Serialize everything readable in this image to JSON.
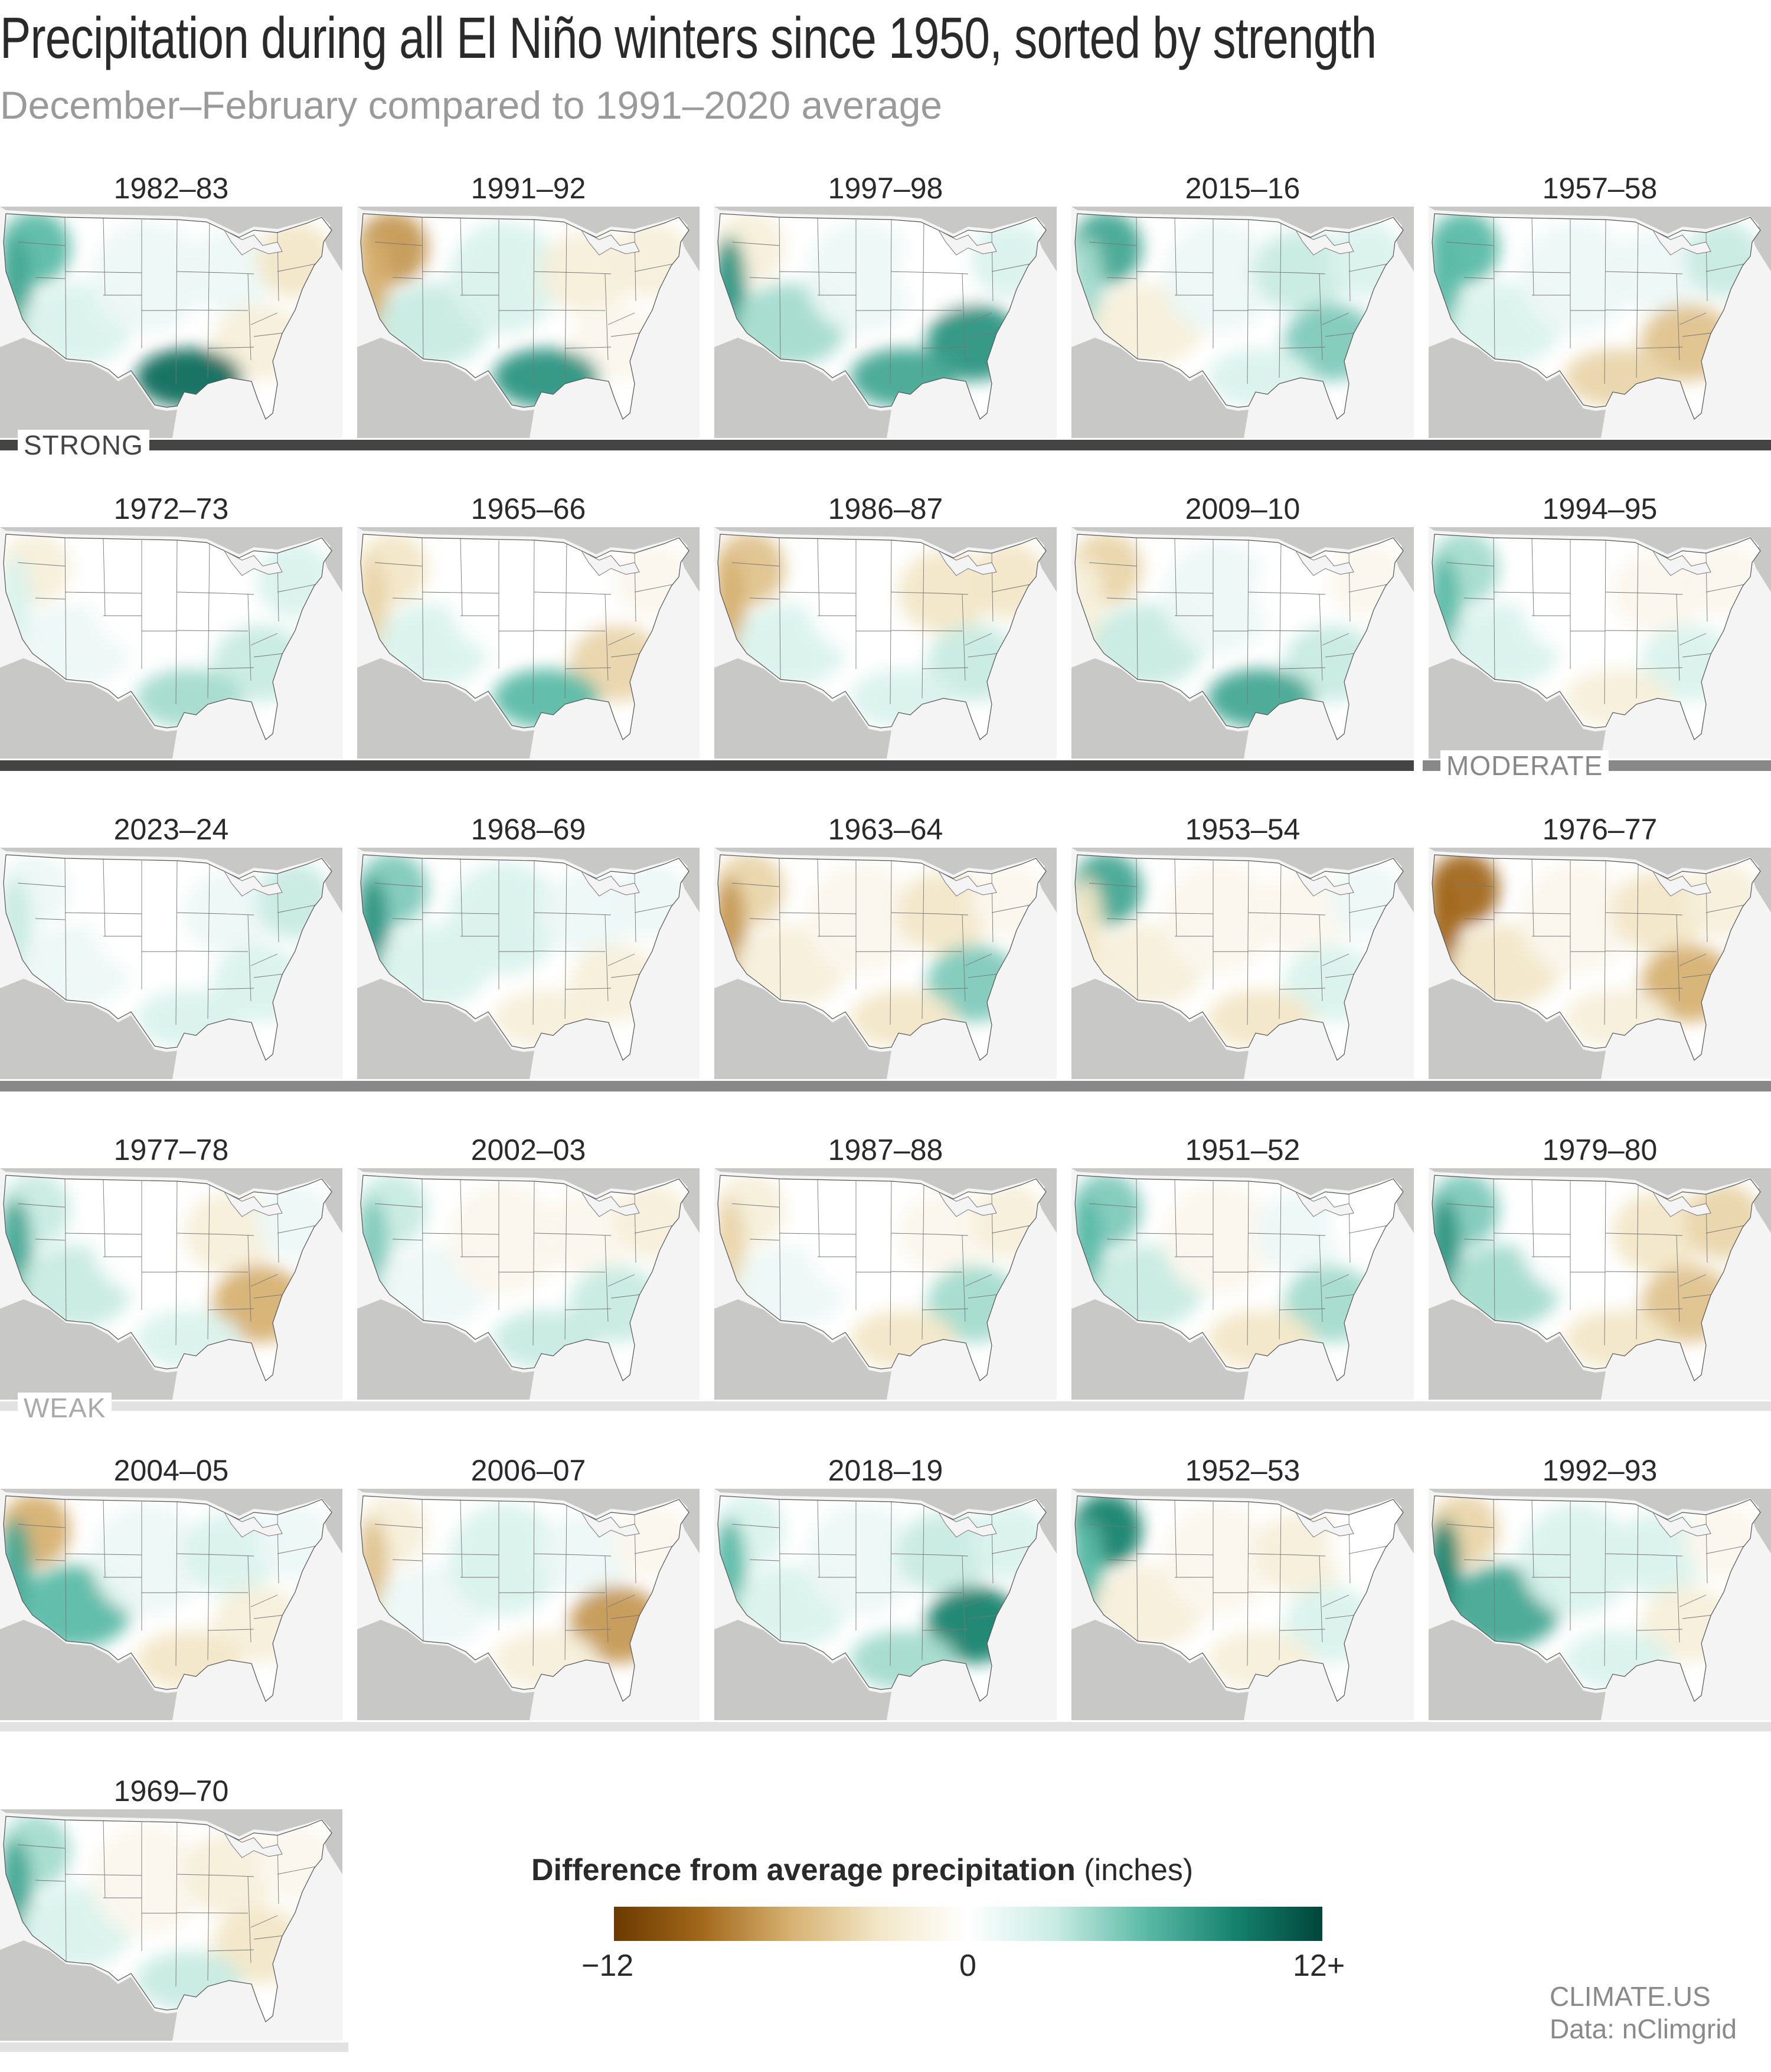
{
  "title": "Precipitation during all El Niño winters since 1950, sorted by strength",
  "subtitle": "December–February compared to 1991–2020 average",
  "panels": [
    {
      "label": "1982–83",
      "strength": "strong",
      "pattern": {
        "west": 7,
        "northwest": 6,
        "southwest": 2,
        "plains": 1,
        "midwest": 1,
        "northeast": -3,
        "southeast": -2,
        "gulf": 10
      }
    },
    {
      "label": "1991–92",
      "strength": "strong",
      "pattern": {
        "west": -6,
        "northwest": -7,
        "southwest": 3,
        "plains": 2,
        "midwest": -2,
        "northeast": -2,
        "southeast": -1,
        "gulf": 8
      }
    },
    {
      "label": "1997–98",
      "strength": "strong",
      "pattern": {
        "west": 8,
        "northwest": -2,
        "southwest": 4,
        "plains": 1,
        "midwest": 0,
        "northeast": 2,
        "southeast": 8,
        "gulf": 7
      }
    },
    {
      "label": "2015–16",
      "strength": "strong",
      "pattern": {
        "west": 4,
        "northwest": 7,
        "southwest": -2,
        "plains": 1,
        "midwest": 3,
        "northeast": 2,
        "southeast": 5,
        "gulf": 2
      }
    },
    {
      "label": "1957–58",
      "strength": "strong",
      "pattern": {
        "west": 6,
        "northwest": 6,
        "southwest": 2,
        "plains": 1,
        "midwest": 1,
        "northeast": 3,
        "southeast": -5,
        "gulf": -4
      }
    },
    {
      "label": "1972–73",
      "strength": "strong",
      "pattern": {
        "west": 2,
        "northwest": -2,
        "southwest": 1,
        "plains": 0,
        "midwest": 0,
        "northeast": 2,
        "southeast": 3,
        "gulf": 4
      }
    },
    {
      "label": "1965–66",
      "strength": "strong",
      "pattern": {
        "west": -4,
        "northwest": -3,
        "southwest": 2,
        "plains": 0,
        "midwest": 0,
        "northeast": -1,
        "southeast": -4,
        "gulf": 6
      }
    },
    {
      "label": "1986–87",
      "strength": "strong",
      "pattern": {
        "west": -6,
        "northwest": -5,
        "southwest": 2,
        "plains": 0,
        "midwest": -3,
        "northeast": -3,
        "southeast": 3,
        "gulf": 2
      }
    },
    {
      "label": "2009–10",
      "strength": "strong",
      "pattern": {
        "west": -2,
        "northwest": -4,
        "southwest": 3,
        "plains": 1,
        "midwest": 0,
        "northeast": -1,
        "southeast": 3,
        "gulf": 7
      }
    },
    {
      "label": "1994–95",
      "strength": "moderate",
      "pattern": {
        "west": 6,
        "northwest": 4,
        "southwest": 2,
        "plains": 0,
        "midwest": -1,
        "northeast": -1,
        "southeast": 2,
        "gulf": -2
      }
    },
    {
      "label": "2023–24",
      "strength": "moderate",
      "pattern": {
        "west": 3,
        "northwest": 1,
        "southwest": 1,
        "plains": 0,
        "midwest": 1,
        "northeast": 3,
        "southeast": 2,
        "gulf": 2
      }
    },
    {
      "label": "1968–69",
      "strength": "moderate",
      "pattern": {
        "west": 8,
        "northwest": 5,
        "southwest": 2,
        "plains": 2,
        "midwest": 1,
        "northeast": 1,
        "southeast": -2,
        "gulf": -2
      }
    },
    {
      "label": "1963–64",
      "strength": "moderate",
      "pattern": {
        "west": -7,
        "northwest": -4,
        "southwest": -2,
        "plains": -1,
        "midwest": -3,
        "northeast": -1,
        "southeast": 5,
        "gulf": -3
      }
    },
    {
      "label": "1953–54",
      "strength": "moderate",
      "pattern": {
        "west": -3,
        "northwest": 7,
        "southwest": -2,
        "plains": -1,
        "midwest": -1,
        "northeast": 1,
        "southeast": 2,
        "gulf": -3
      }
    },
    {
      "label": "1976–77",
      "strength": "moderate",
      "pattern": {
        "west": -9,
        "northwest": -9,
        "southwest": -3,
        "plains": -1,
        "midwest": -3,
        "northeast": -2,
        "southeast": -6,
        "gulf": -2
      }
    },
    {
      "label": "1977–78",
      "strength": "weak",
      "pattern": {
        "west": 7,
        "northwest": 3,
        "southwest": 3,
        "plains": 0,
        "midwest": -2,
        "northeast": 1,
        "southeast": -6,
        "gulf": 2
      }
    },
    {
      "label": "2002–03",
      "strength": "weak",
      "pattern": {
        "west": 5,
        "northwest": 3,
        "southwest": 1,
        "plains": -1,
        "midwest": -1,
        "northeast": -2,
        "southeast": 3,
        "gulf": 3
      }
    },
    {
      "label": "1987–88",
      "strength": "weak",
      "pattern": {
        "west": -4,
        "northwest": -2,
        "southwest": 1,
        "plains": 0,
        "midwest": -1,
        "northeast": -2,
        "southeast": 4,
        "gulf": -3
      }
    },
    {
      "label": "1951–52",
      "strength": "weak",
      "pattern": {
        "west": 6,
        "northwest": 5,
        "southwest": 3,
        "plains": -1,
        "midwest": 1,
        "northeast": 0,
        "southeast": 4,
        "gulf": -3
      }
    },
    {
      "label": "1979–80",
      "strength": "weak",
      "pattern": {
        "west": 8,
        "northwest": 5,
        "southwest": 4,
        "plains": 0,
        "midwest": -3,
        "northeast": -4,
        "southeast": -5,
        "gulf": -3
      }
    },
    {
      "label": "2004–05",
      "strength": "weak",
      "pattern": {
        "west": 7,
        "northwest": -6,
        "southwest": 6,
        "plains": 1,
        "midwest": 2,
        "northeast": 1,
        "southeast": -2,
        "gulf": -3
      }
    },
    {
      "label": "2006–07",
      "strength": "weak",
      "pattern": {
        "west": -5,
        "northwest": -2,
        "southwest": 1,
        "plains": 2,
        "midwest": 1,
        "northeast": -1,
        "southeast": -7,
        "gulf": -2
      }
    },
    {
      "label": "2018–19",
      "strength": "weak",
      "pattern": {
        "west": 6,
        "northwest": 2,
        "southwest": 2,
        "plains": 1,
        "midwest": 3,
        "northeast": 2,
        "southeast": 9,
        "gulf": 4
      }
    },
    {
      "label": "1952–53",
      "strength": "weak",
      "pattern": {
        "west": 6,
        "northwest": 9,
        "southwest": -2,
        "plains": -1,
        "midwest": -2,
        "northeast": 0,
        "southeast": 2,
        "gulf": -2
      }
    },
    {
      "label": "1992–93",
      "strength": "weak",
      "pattern": {
        "west": 9,
        "northwest": -4,
        "southwest": 7,
        "plains": 2,
        "midwest": 2,
        "northeast": -1,
        "southeast": -2,
        "gulf": 2
      }
    },
    {
      "label": "1969–70",
      "strength": "weak",
      "pattern": {
        "west": 7,
        "northwest": 4,
        "southwest": 2,
        "plains": -1,
        "midwest": -2,
        "northeast": -1,
        "southeast": -3,
        "gulf": 3
      }
    }
  ],
  "strength_bands": {
    "strong": {
      "label": "STRONG",
      "color": "#444444"
    },
    "moderate": {
      "label": "MODERATE",
      "color": "#888888"
    },
    "weak": {
      "label": "WEAK",
      "color": "#e2e2e2"
    }
  },
  "legend": {
    "title_bold": "Difference from average precipitation",
    "title_unit": "(inches)",
    "min_label": "−12",
    "mid_label": "0",
    "max_label": "12+",
    "range": [
      -12,
      12
    ],
    "colors": [
      "#6b3a00",
      "#a2691c",
      "#d6b171",
      "#f2e7c8",
      "#ffffff",
      "#c8ebe2",
      "#5bbaa6",
      "#16836e",
      "#00453a"
    ]
  },
  "credit": {
    "source": "CLIMATE.US",
    "data": "Data: nClimgrid"
  },
  "colors": {
    "background_tile": "#f4f4f4",
    "land_outside": "#c8c8c6",
    "state_border": "#777777"
  }
}
